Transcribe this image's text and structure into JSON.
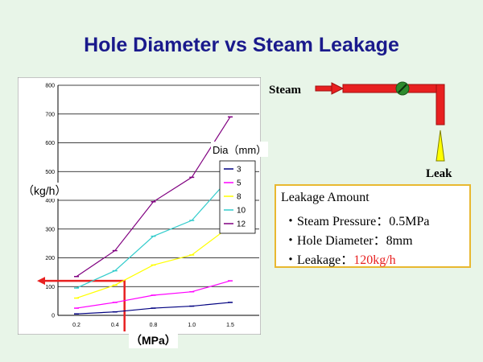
{
  "slide": {
    "title": "Hole Diameter vs Steam Leakage"
  },
  "chart_data": {
    "type": "line",
    "x": [
      "0.2",
      "0.4",
      "0.8",
      "1.0",
      "1.5"
    ],
    "series": [
      {
        "name": "3",
        "color": "#000080",
        "values": [
          5,
          12,
          25,
          32,
          45
        ]
      },
      {
        "name": "5",
        "color": "#ff00ff",
        "values": [
          25,
          45,
          70,
          82,
          120
        ]
      },
      {
        "name": "8",
        "color": "#ffff00",
        "values": [
          60,
          105,
          175,
          210,
          310
        ]
      },
      {
        "name": "10",
        "color": "#33cccc",
        "values": [
          95,
          155,
          275,
          330,
          480
        ]
      },
      {
        "name": "12",
        "color": "#800080",
        "values": [
          135,
          225,
          395,
          480,
          690
        ]
      }
    ],
    "ylim": [
      0,
      800
    ],
    "yticks": [
      "0",
      "100",
      "200",
      "300",
      "400",
      "500",
      "600",
      "700",
      "800"
    ],
    "ylabel": "（kg/h）",
    "xlabel": "（MPa）",
    "legend_title": "Dia（mm）",
    "legend_position": "right",
    "grid": "horizontal",
    "highlight": {
      "x": 0.5,
      "y": 120,
      "color": "#e82020"
    }
  },
  "diagram": {
    "steam_label": "Steam",
    "leak_label": "Leak",
    "pipe_color": "#e82020",
    "valve_color": "#2e8b2e",
    "leak_color": "#ffff00"
  },
  "info": {
    "title": "Leakage Amount",
    "lines": [
      {
        "label": "・Steam Pressure：",
        "value": "0.5MPa"
      },
      {
        "label": "・Hole Diameter：",
        "value": "8mm"
      },
      {
        "label": "・Leakage：",
        "value": "120kg/h"
      }
    ]
  }
}
